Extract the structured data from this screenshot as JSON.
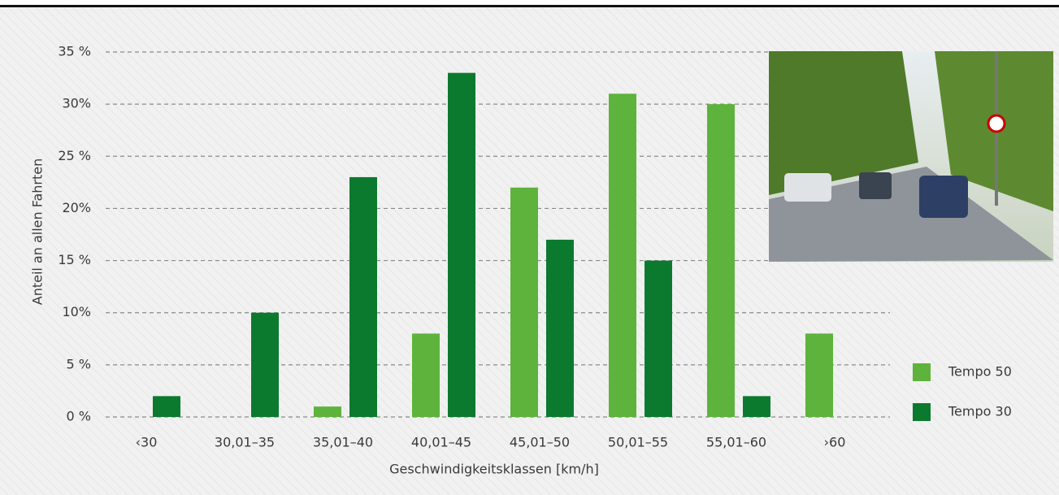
{
  "chart_data": {
    "type": "bar",
    "x_label": "Geschwindigkeitsklassen [km/h]",
    "y_label": "Anteil an allen Fahrten",
    "categories": [
      "‹30",
      "30,01–35",
      "35,01–40",
      "40,01–45",
      "45,01–50",
      "50,01–55",
      "55,01–60",
      "›60"
    ],
    "series": [
      {
        "name": "Tempo 50",
        "color": "#5db33c",
        "values": [
          0,
          0,
          1,
          8,
          22,
          31,
          30,
          8
        ]
      },
      {
        "name": "Tempo 30",
        "color": "#0b7a2f",
        "values": [
          2,
          10,
          23,
          33,
          17,
          15,
          2,
          0
        ]
      }
    ],
    "ylim": [
      0,
      35
    ],
    "yticks": [
      {
        "value": 0,
        "label": "0 %"
      },
      {
        "value": 5,
        "label": "5 %"
      },
      {
        "value": 10,
        "label": "10%"
      },
      {
        "value": 15,
        "label": "15 %"
      },
      {
        "value": 20,
        "label": "20%"
      },
      {
        "value": 25,
        "label": "25 %"
      },
      {
        "value": 30,
        "label": "30%"
      },
      {
        "value": 35,
        "label": "35 %"
      }
    ],
    "grid": true,
    "legend": "right"
  }
}
